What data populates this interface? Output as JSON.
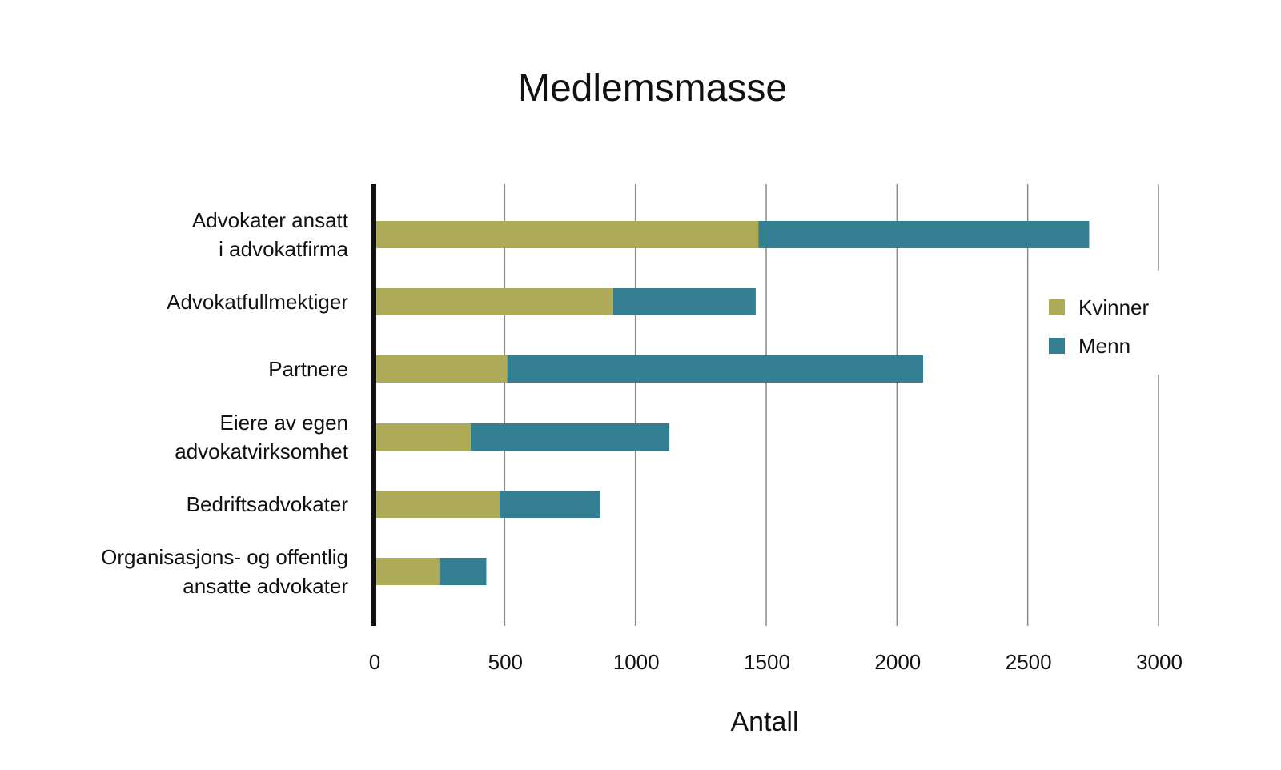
{
  "chart_data": {
    "type": "bar",
    "orientation": "horizontal",
    "stacked": true,
    "title": "Medlemsmasse",
    "xlabel": "Antall",
    "ylabel": "",
    "xlim": [
      0,
      3000
    ],
    "xticks": [
      "0",
      "500",
      "1000",
      "1500",
      "2000",
      "2500",
      "3000"
    ],
    "grid": true,
    "legend_position": "right",
    "categories": [
      [
        "Advokater ansatt",
        "i advokatfirma"
      ],
      [
        "Advokatfullmektiger"
      ],
      [
        "Partnere"
      ],
      [
        "Eiere av egen",
        "advokatvirksomhet"
      ],
      [
        "Bedriftsadvokater"
      ],
      [
        "Organisasjons- og offentlig",
        "ansatte advokater"
      ]
    ],
    "series": [
      {
        "name": "Kvinner",
        "color": "#aeab58",
        "values": [
          1470,
          915,
          510,
          370,
          480,
          250
        ]
      },
      {
        "name": "Menn",
        "color": "#357f93",
        "values": [
          1265,
          545,
          1590,
          760,
          385,
          180
        ]
      }
    ]
  }
}
